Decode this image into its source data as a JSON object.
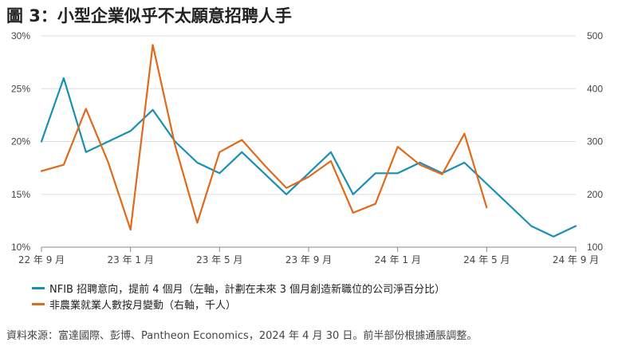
{
  "title": "圖 3：小型企業似乎不太願意招聘人手",
  "source": "資料來源：富達國際、彭博、Pantheon Economics，2024 年 4 月 30 日。前半部份根據通脹調整。",
  "colors": {
    "series1": "#1a8fb5",
    "series2": "#e06a1b",
    "grid": "#dddddd",
    "axis": "#888888"
  },
  "chart_data": {
    "type": "line",
    "x_tick_labels": [
      "22 年 9 月",
      "23 年 1 月",
      "23 年 5 月",
      "23 年 9 月",
      "24 年 1 月",
      "24 年 5 月",
      "24 年 9 月"
    ],
    "x_tick_months": [
      0,
      4,
      8,
      12,
      16,
      20,
      24
    ],
    "left_axis": {
      "ticks": [
        "10%",
        "15%",
        "20%",
        "25%",
        "30%"
      ],
      "range": [
        10,
        30
      ]
    },
    "right_axis": {
      "ticks": [
        "100",
        "200",
        "300",
        "400",
        "500"
      ],
      "range": [
        100,
        500
      ]
    },
    "grid": true,
    "legend_position": "bottom",
    "series": [
      {
        "name": "NFIB 招聘意向，提前 4 個月（左軸，計劃在未來 3 個月創造新職位的公司淨百分比）",
        "axis": "left",
        "x": [
          0,
          1,
          2,
          3,
          4,
          5,
          6,
          7,
          8,
          9,
          10,
          11,
          12,
          13,
          14,
          15,
          16,
          17,
          18,
          19,
          20,
          21,
          22,
          23,
          24
        ],
        "values": [
          20,
          26,
          19,
          20,
          21,
          23,
          20,
          18,
          17,
          19,
          17,
          15,
          17,
          19,
          15,
          17,
          17,
          18,
          17,
          18,
          16,
          14,
          12,
          11,
          12
        ]
      },
      {
        "name": "非農業就業人數按月變動（右軸，千人）",
        "axis": "right",
        "x": [
          0,
          1,
          2,
          3,
          4,
          5,
          6,
          7,
          8,
          9,
          10,
          11,
          12,
          13,
          14,
          15,
          16,
          17,
          18,
          19,
          20
        ],
        "values": [
          244,
          256,
          362,
          260,
          133,
          483,
          293,
          146,
          280,
          303,
          256,
          212,
          233,
          263,
          165,
          182,
          290,
          256,
          238,
          315,
          175
        ]
      }
    ]
  }
}
